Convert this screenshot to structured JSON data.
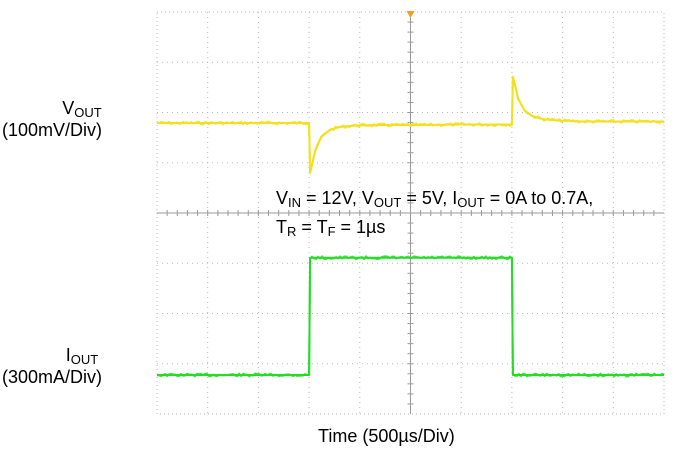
{
  "chart_data": {
    "type": "line",
    "title": "",
    "xlabel": "Time (500µs/Div)",
    "x_unit": "µs",
    "x_per_div": 500,
    "x_divisions": 10,
    "xlim": [
      0,
      5000
    ],
    "grid": true,
    "channels": [
      {
        "id": "vout",
        "name_main": "V",
        "name_sub": "OUT",
        "scale_text": "(100mV/Div)",
        "unit": "mV",
        "per_div": 100,
        "color": "#f2e01e",
        "points": [
          [
            0,
            0
          ],
          [
            1500,
            0
          ],
          [
            1510,
            -98
          ],
          [
            1560,
            -55
          ],
          [
            1620,
            -28
          ],
          [
            1700,
            -14
          ],
          [
            1800,
            -8
          ],
          [
            1950,
            -5
          ],
          [
            2200,
            -4
          ],
          [
            2600,
            -4
          ],
          [
            3000,
            -3
          ],
          [
            3500,
            -3
          ],
          [
            3510,
            92
          ],
          [
            3560,
            50
          ],
          [
            3620,
            26
          ],
          [
            3700,
            14
          ],
          [
            3800,
            8
          ],
          [
            3950,
            5
          ],
          [
            4200,
            3
          ],
          [
            4600,
            3
          ],
          [
            5000,
            3
          ]
        ]
      },
      {
        "id": "iout",
        "name_main": "I",
        "name_sub": "OUT",
        "scale_text": "(300mA/Div)",
        "unit": "A",
        "per_div": 0.3,
        "color": "#22dd22",
        "points": [
          [
            0,
            0
          ],
          [
            1500,
            0
          ],
          [
            1510,
            0.7
          ],
          [
            3500,
            0.7
          ],
          [
            3510,
            0
          ],
          [
            5000,
            0
          ]
        ]
      }
    ],
    "annotation": {
      "line1": [
        {
          "t": "V"
        },
        {
          "t": "IN",
          "sub": true
        },
        {
          "t": " = 12V, V"
        },
        {
          "t": "OUT",
          "sub": true
        },
        {
          "t": " = 5V, I"
        },
        {
          "t": "OUT",
          "sub": true
        },
        {
          "t": " = 0A to 0.7A,"
        }
      ],
      "line2": [
        {
          "t": "T"
        },
        {
          "t": "R",
          "sub": true
        },
        {
          "t": " = T"
        },
        {
          "t": "F",
          "sub": true
        },
        {
          "t": " = 1µs"
        }
      ]
    },
    "colors": {
      "grid": "#b8b8b8",
      "tick": "#9a9a9a",
      "trigger_marker": "#f0a020"
    }
  }
}
